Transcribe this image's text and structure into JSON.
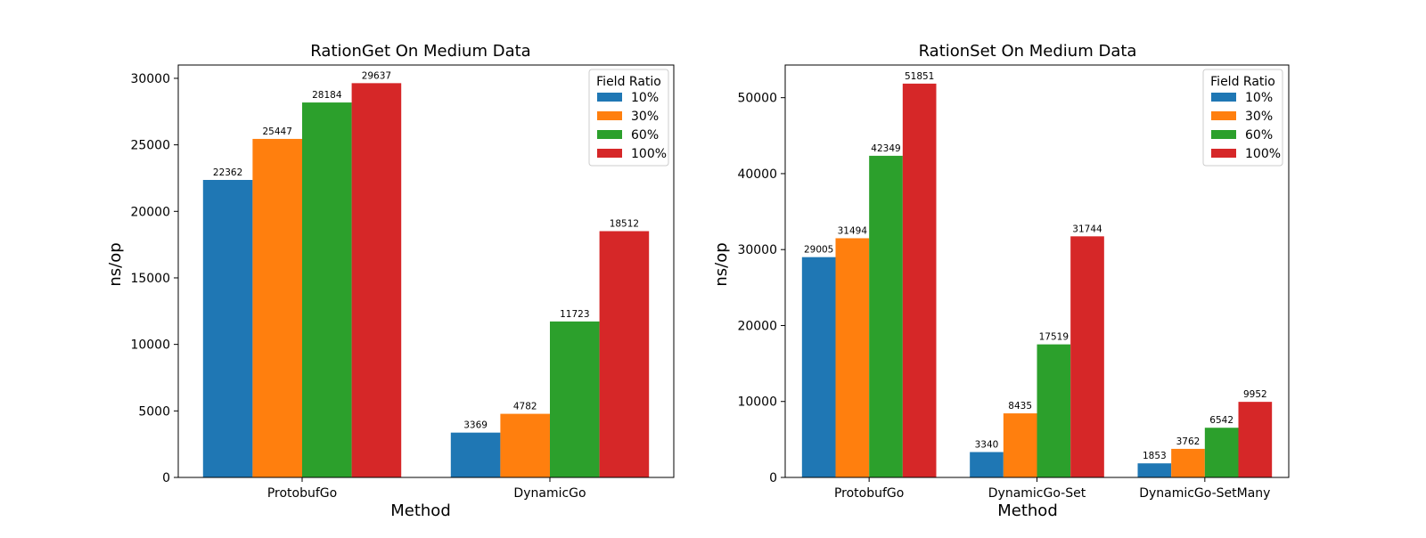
{
  "chart_data": [
    {
      "type": "bar",
      "title": "RationGet On Medium Data",
      "xlabel": "Method",
      "ylabel": "ns/op",
      "categories": [
        "ProtobufGo",
        "DynamicGo"
      ],
      "ylim": [
        0,
        31000
      ],
      "yticks": [
        0,
        5000,
        10000,
        15000,
        20000,
        25000,
        30000
      ],
      "legend": {
        "title": "Field Ratio",
        "position": "top-right"
      },
      "grid": false,
      "series": [
        {
          "name": "10%",
          "color": "#1f77b4",
          "values": [
            22362,
            3369
          ]
        },
        {
          "name": "30%",
          "color": "#ff7f0e",
          "values": [
            25447,
            4782
          ]
        },
        {
          "name": "60%",
          "color": "#2ca02c",
          "values": [
            28184,
            11723
          ]
        },
        {
          "name": "100%",
          "color": "#d62728",
          "values": [
            29637,
            18512
          ]
        }
      ]
    },
    {
      "type": "bar",
      "title": "RationSet On Medium Data",
      "xlabel": "Method",
      "ylabel": "ns/op",
      "categories": [
        "ProtobufGo",
        "DynamicGo-Set",
        "DynamicGo-SetMany"
      ],
      "ylim": [
        0,
        54300
      ],
      "yticks": [
        0,
        10000,
        20000,
        30000,
        40000,
        50000
      ],
      "legend": {
        "title": "Field Ratio",
        "position": "top-right"
      },
      "grid": false,
      "series": [
        {
          "name": "10%",
          "color": "#1f77b4",
          "values": [
            29005,
            3340,
            1853
          ]
        },
        {
          "name": "30%",
          "color": "#ff7f0e",
          "values": [
            31494,
            8435,
            3762
          ]
        },
        {
          "name": "60%",
          "color": "#2ca02c",
          "values": [
            42349,
            17519,
            6542
          ]
        },
        {
          "name": "100%",
          "color": "#d62728",
          "values": [
            51851,
            31744,
            9952
          ]
        }
      ]
    }
  ]
}
